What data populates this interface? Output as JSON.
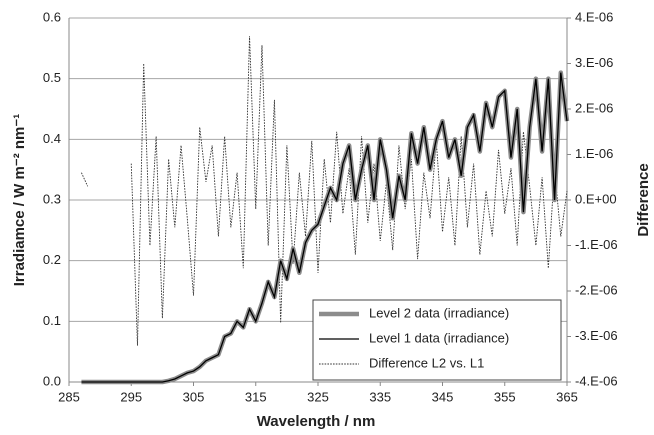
{
  "chart_data": {
    "type": "line",
    "x_label": "Wavelength / nm",
    "y_label": "Irradiamce / W m⁻² nm⁻¹",
    "y2_label": "Difference",
    "x": [
      287,
      288,
      289,
      290,
      291,
      292,
      293,
      294,
      295,
      296,
      297,
      298,
      299,
      300,
      301,
      302,
      303,
      304,
      305,
      306,
      307,
      308,
      309,
      310,
      311,
      312,
      313,
      314,
      315,
      316,
      317,
      318,
      319,
      320,
      321,
      322,
      323,
      324,
      325,
      326,
      327,
      328,
      329,
      330,
      331,
      332,
      333,
      334,
      335,
      336,
      337,
      338,
      339,
      340,
      341,
      342,
      343,
      344,
      345,
      346,
      347,
      348,
      349,
      350,
      351,
      352,
      353,
      354,
      355,
      356,
      357,
      358,
      359,
      360,
      361,
      362,
      363,
      364,
      365
    ],
    "xlim": [
      285,
      365
    ],
    "xticks": [
      285,
      295,
      305,
      315,
      325,
      335,
      345,
      355,
      365
    ],
    "ylim": [
      0,
      0.6
    ],
    "yticks": [
      {
        "value": 0,
        "label": "0.0"
      },
      0.1,
      0.2,
      0.3,
      0.4,
      0.5,
      0.6
    ],
    "y2lim": [
      -4e-06,
      4e-06
    ],
    "y2ticks": [
      {
        "value": -4e-06,
        "label": "-4.E-06"
      },
      {
        "value": -3e-06,
        "label": "-3.E-06"
      },
      {
        "value": -2e-06,
        "label": "-2.E-06"
      },
      {
        "value": -1e-06,
        "label": "-1.E-06"
      },
      {
        "value": 0,
        "label": "0.E+00"
      },
      {
        "value": 1e-06,
        "label": "1.E-06"
      },
      {
        "value": 2e-06,
        "label": "2.E-06"
      },
      {
        "value": 3e-06,
        "label": "3.E-06"
      },
      {
        "value": 4e-06,
        "label": "4.E-06"
      }
    ],
    "grid": true,
    "legend": "lower right",
    "series": [
      {
        "name": "Level 2 data (irradiance)",
        "color": "#8c8c8c",
        "style": "thick",
        "values": [
          0,
          0,
          0,
          0,
          0,
          0,
          0,
          0,
          0,
          0,
          0,
          0,
          0,
          0,
          0.002,
          0.005,
          0.01,
          0.015,
          0.018,
          0.025,
          0.035,
          0.04,
          0.045,
          0.075,
          0.08,
          0.1,
          0.09,
          0.12,
          0.1,
          0.13,
          0.165,
          0.14,
          0.2,
          0.17,
          0.22,
          0.18,
          0.23,
          0.25,
          0.26,
          0.29,
          0.32,
          0.3,
          0.36,
          0.39,
          0.3,
          0.35,
          0.39,
          0.3,
          0.4,
          0.35,
          0.27,
          0.34,
          0.3,
          0.41,
          0.36,
          0.42,
          0.35,
          0.4,
          0.43,
          0.37,
          0.4,
          0.34,
          0.42,
          0.44,
          0.38,
          0.46,
          0.42,
          0.47,
          0.48,
          0.37,
          0.45,
          0.28,
          0.42,
          0.5,
          0.38,
          0.5,
          0.3,
          0.51,
          0.43
        ]
      },
      {
        "name": "Level 1 data (irradiance)",
        "color": "#000000",
        "style": "solid",
        "values": [
          0,
          0,
          0,
          0,
          0,
          0,
          0,
          0,
          0,
          0,
          0,
          0,
          0,
          0,
          0.002,
          0.005,
          0.01,
          0.015,
          0.018,
          0.025,
          0.035,
          0.04,
          0.045,
          0.075,
          0.08,
          0.1,
          0.09,
          0.12,
          0.1,
          0.13,
          0.165,
          0.14,
          0.2,
          0.17,
          0.22,
          0.18,
          0.23,
          0.25,
          0.26,
          0.29,
          0.32,
          0.3,
          0.36,
          0.39,
          0.3,
          0.35,
          0.39,
          0.3,
          0.4,
          0.35,
          0.27,
          0.34,
          0.3,
          0.41,
          0.36,
          0.42,
          0.35,
          0.4,
          0.43,
          0.37,
          0.4,
          0.34,
          0.42,
          0.44,
          0.38,
          0.46,
          0.42,
          0.47,
          0.48,
          0.37,
          0.45,
          0.28,
          0.42,
          0.5,
          0.38,
          0.5,
          0.3,
          0.51,
          0.43
        ]
      },
      {
        "name": "Difference L2 vs. L1",
        "color": "#333333",
        "style": "dotted",
        "axis": "y2",
        "values": [
          6e-07,
          3e-07,
          null,
          null,
          null,
          null,
          null,
          null,
          8e-07,
          -3.2e-06,
          3e-06,
          -1e-06,
          1.4e-06,
          -2.6e-06,
          9e-07,
          -6e-07,
          1.2e-06,
          -4e-07,
          -2.1e-06,
          1.6e-06,
          4e-07,
          1.2e-06,
          -8e-07,
          1.4e-06,
          -6e-07,
          6e-07,
          -1.5e-06,
          3.6e-06,
          -2e-07,
          3.4e-06,
          -1e-06,
          2.2e-06,
          -2.7e-06,
          1.2e-06,
          -1.4e-06,
          6e-07,
          -8e-07,
          1.3e-06,
          -1.6e-06,
          9e-07,
          -5e-07,
          1.5e-06,
          -3e-07,
          7e-07,
          -1.2e-06,
          1.4e-06,
          -5e-07,
          8e-07,
          -9e-07,
          4e-07,
          -1.1e-06,
          1.2e-06,
          -2e-07,
          9e-07,
          -1.3e-06,
          6e-07,
          -4e-07,
          1.3e-06,
          -7e-07,
          5e-07,
          -1e-06,
          1.4e-06,
          -6e-07,
          8e-07,
          -1.2e-06,
          2e-07,
          -8e-07,
          1.1e-06,
          -3e-07,
          7e-07,
          -1e-06,
          1.5e-06,
          3e-07,
          -1e-06,
          5e-07,
          -1.5e-06,
          7e-07,
          -8e-07,
          2e-07
        ]
      }
    ]
  }
}
